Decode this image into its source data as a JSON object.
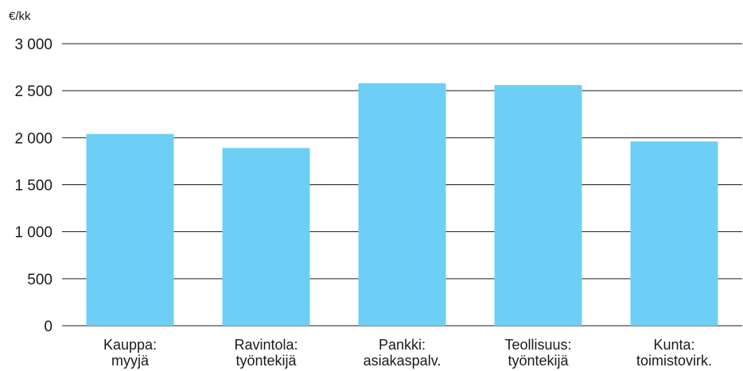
{
  "chart_data": {
    "type": "bar",
    "unit_label": "€/kk",
    "categories": [
      [
        "Kauppa:",
        "myyjä"
      ],
      [
        "Ravintola:",
        "työntekijä"
      ],
      [
        "Pankki:",
        "asiakaspalv."
      ],
      [
        "Teollisuus:",
        "työntekijä"
      ],
      [
        "Kunta:",
        "toimistovirk."
      ]
    ],
    "values": [
      2040,
      1890,
      2580,
      2560,
      1960
    ],
    "ylim": [
      0,
      3000
    ],
    "yticks": [
      0,
      500,
      1000,
      1500,
      2000,
      2500,
      3000
    ],
    "ytick_labels": [
      "0",
      "500",
      "1 000",
      "1 500",
      "2 000",
      "2 500",
      "3 000"
    ],
    "grid": true,
    "bar_color": "#6dcff6",
    "grid_color": "#1a1a1a"
  }
}
